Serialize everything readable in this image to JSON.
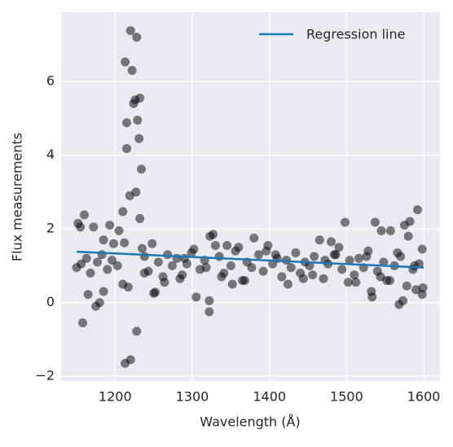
{
  "chart_data": {
    "type": "scatter",
    "xlabel": "Wavelength (Å)",
    "ylabel": "Flux measurements",
    "xlim": [
      1130,
      1621
    ],
    "ylim": [
      -2.13,
      7.88
    ],
    "xticks": [
      1200,
      1300,
      1400,
      1500,
      1600
    ],
    "yticks": [
      {
        "value": -2,
        "label": "−2"
      },
      0,
      2,
      4,
      6
    ],
    "grid": true,
    "legend": "upper right",
    "points": {
      "color": "#000000",
      "x": [
        1220,
        1228,
        1213,
        1222,
        1224,
        1226,
        1232,
        1215,
        1229,
        1231,
        1215,
        1234,
        1219,
        1227,
        1232,
        1210,
        1160,
        1152,
        1155,
        1172,
        1193,
        1205,
        1212,
        1198,
        1185,
        1158,
        1175,
        1180,
        1213,
        1220,
        1228,
        1185,
        1165,
        1210,
        1217,
        1305,
        1322,
        1322,
        1323,
        1327,
        1380,
        1398,
        1498,
        1537,
        1575,
        1592,
        1582,
        1568,
        1573,
        1533,
        1532,
        1590,
        1598,
        1599,
        1598,
        1557,
        1545,
        1580,
        1480,
        1465,
        1490,
        1250,
        1252,
        1248,
        1235,
        1330,
        1345,
        1360,
        1150,
        1156,
        1163,
        1168,
        1177,
        1183,
        1190,
        1196,
        1203,
        1238,
        1243,
        1256,
        1262,
        1268,
        1274,
        1280,
        1287,
        1293,
        1299,
        1310,
        1316,
        1335,
        1341,
        1350,
        1356,
        1365,
        1371,
        1377,
        1386,
        1392,
        1404,
        1410,
        1416,
        1422,
        1428,
        1434,
        1440,
        1446,
        1452,
        1458,
        1470,
        1476,
        1486,
        1494,
        1504,
        1510,
        1516,
        1522,
        1528,
        1540,
        1548,
        1552,
        1562,
        1570,
        1586,
        1594,
        1264,
        1284,
        1302,
        1338,
        1368,
        1396,
        1424,
        1456,
        1484,
        1512,
        1544,
        1566,
        1578,
        1238,
        1290,
        1318,
        1352,
        1408,
        1444,
        1472,
        1502,
        1526,
        1556,
        1588
      ],
      "y": [
        7.38,
        7.2,
        6.53,
        6.3,
        5.4,
        5.5,
        5.55,
        4.88,
        4.95,
        4.45,
        4.18,
        3.62,
        2.9,
        3.0,
        2.28,
        2.47,
        2.38,
        2.15,
        2.05,
        2.05,
        2.1,
        1.95,
        1.62,
        1.6,
        1.7,
        -0.55,
        -0.1,
        0.0,
        -1.65,
        -1.55,
        -0.78,
        0.3,
        0.22,
        0.5,
        0.42,
        0.15,
        -0.25,
        0.05,
        1.8,
        1.85,
        1.75,
        1.55,
        2.18,
        2.18,
        2.1,
        2.52,
        2.2,
        -0.05,
        0.05,
        0.15,
        0.3,
        0.35,
        0.22,
        0.4,
        1.45,
        1.95,
        1.95,
        1.8,
        1.65,
        1.7,
        1.5,
        0.25,
        0.28,
        1.6,
        1.47,
        1.55,
        1.55,
        1.5,
        0.95,
        1.05,
        1.2,
        0.8,
        1.1,
        1.3,
        0.9,
        1.15,
        1.0,
        1.25,
        0.85,
        1.1,
        0.7,
        1.3,
        1.0,
        1.2,
        0.75,
        1.05,
        1.35,
        0.9,
        1.15,
        1.25,
        0.8,
        1.0,
        1.4,
        0.6,
        1.1,
        0.95,
        1.3,
        0.85,
        1.05,
        1.2,
        0.7,
        1.15,
        0.95,
        1.35,
        0.8,
        1.1,
        1.0,
        1.25,
        0.65,
        1.05,
        1.3,
        0.9,
        1.15,
        0.75,
        1.2,
        0.95,
        1.4,
        0.85,
        1.1,
        0.6,
        1.0,
        1.25,
        0.9,
        1.05,
        0.55,
        0.65,
        1.45,
        0.7,
        0.6,
        1.4,
        0.5,
        0.75,
        1.3,
        0.55,
        0.7,
        1.35,
        0.45,
        0.8,
        1.2,
        0.95,
        0.5,
        1.3,
        0.65,
        1.15,
        0.55,
        1.25,
        0.6,
        1.0
      ]
    },
    "line": {
      "name": "Regression line",
      "color": "#1f77b4",
      "x": [
        1150,
        1600
      ],
      "y": [
        1.38,
        0.95
      ]
    }
  }
}
